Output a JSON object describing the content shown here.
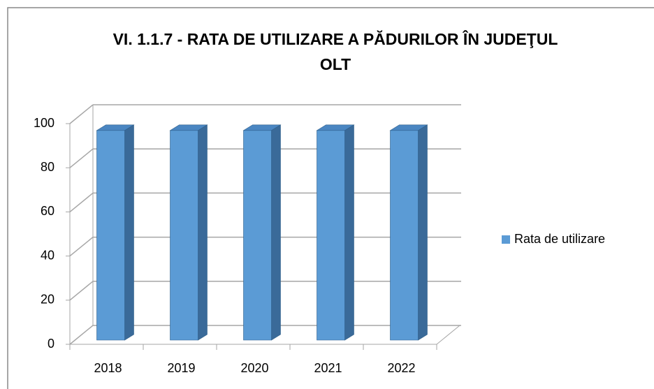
{
  "chart_data": {
    "type": "bar3d",
    "title": "VI. 1.1.7 - RATA DE UTILIZARE A PĂDURILOR ÎN JUDEŢUL OLT",
    "categories": [
      "2018",
      "2019",
      "2020",
      "2021",
      "2022"
    ],
    "series": [
      {
        "name": "Rata de utilizare",
        "color": "#5b9bd5",
        "values": [
          95,
          95,
          95,
          95,
          95
        ]
      }
    ],
    "ylim": [
      0,
      100
    ],
    "yticks": [
      0,
      20,
      40,
      60,
      80,
      100
    ],
    "grid": true,
    "legend": "right"
  }
}
